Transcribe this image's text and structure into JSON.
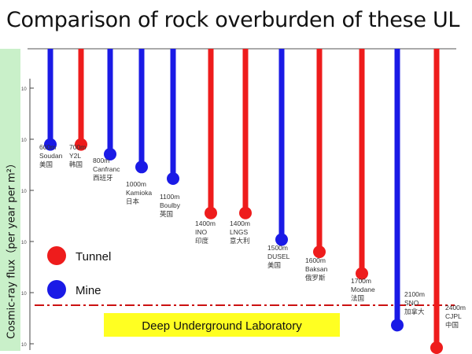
{
  "title": "Comparison of rock overburden of these UL",
  "chart_data": {
    "type": "bar",
    "ylabel": "Cosmic-ray flux（per year per m²）",
    "y_scale": "log",
    "ylim": [
      1,
      100000000
    ],
    "y_ticks": [
      "10",
      "10",
      "10",
      "10",
      "10",
      "10"
    ],
    "legend": [
      {
        "name": "Tunnel",
        "color": "#ee1c1c"
      },
      {
        "name": "Mine",
        "color": "#1a1ae6"
      }
    ],
    "reference_line": {
      "label": "Deep Underground Laboratory",
      "color": "#cc1111",
      "value": 10
    },
    "labs": [
      {
        "depth": "600m",
        "name": "Soudan",
        "country": "美国",
        "type": "Mine",
        "value": 1600000
      },
      {
        "depth": "700m",
        "name": "Y2L",
        "country": "韩国",
        "type": "Tunnel",
        "value": 1600000
      },
      {
        "depth": "800m",
        "name": "Canfranc",
        "country": "西班牙",
        "type": "Mine",
        "value": 800000
      },
      {
        "depth": "1000m",
        "name": "Kamioka",
        "country": "日本",
        "type": "Mine",
        "value": 320000
      },
      {
        "depth": "1100m",
        "name": "Boulby",
        "country": "英国",
        "type": "Mine",
        "value": 140000
      },
      {
        "depth": "1400m",
        "name": "INO",
        "country": "印度",
        "type": "Tunnel",
        "value": 12000
      },
      {
        "depth": "1400m",
        "name": "LNGS",
        "country": "意大利",
        "type": "Tunnel",
        "value": 12000
      },
      {
        "depth": "1500m",
        "name": "DUSEL",
        "country": "美国",
        "type": "Mine",
        "value": 1800
      },
      {
        "depth": "1600m",
        "name": "Baksan",
        "country": "俄罗斯",
        "type": "Tunnel",
        "value": 750
      },
      {
        "depth": "1700m",
        "name": "Modane",
        "country": "法国",
        "type": "Tunnel",
        "value": 160
      },
      {
        "depth": "2100m",
        "name": "SNO",
        "country": "加拿大",
        "type": "Mine",
        "value": 4
      },
      {
        "depth": "2400m",
        "name": "CJPL",
        "country": "中国",
        "type": "Tunnel",
        "value": 0.8
      }
    ]
  }
}
